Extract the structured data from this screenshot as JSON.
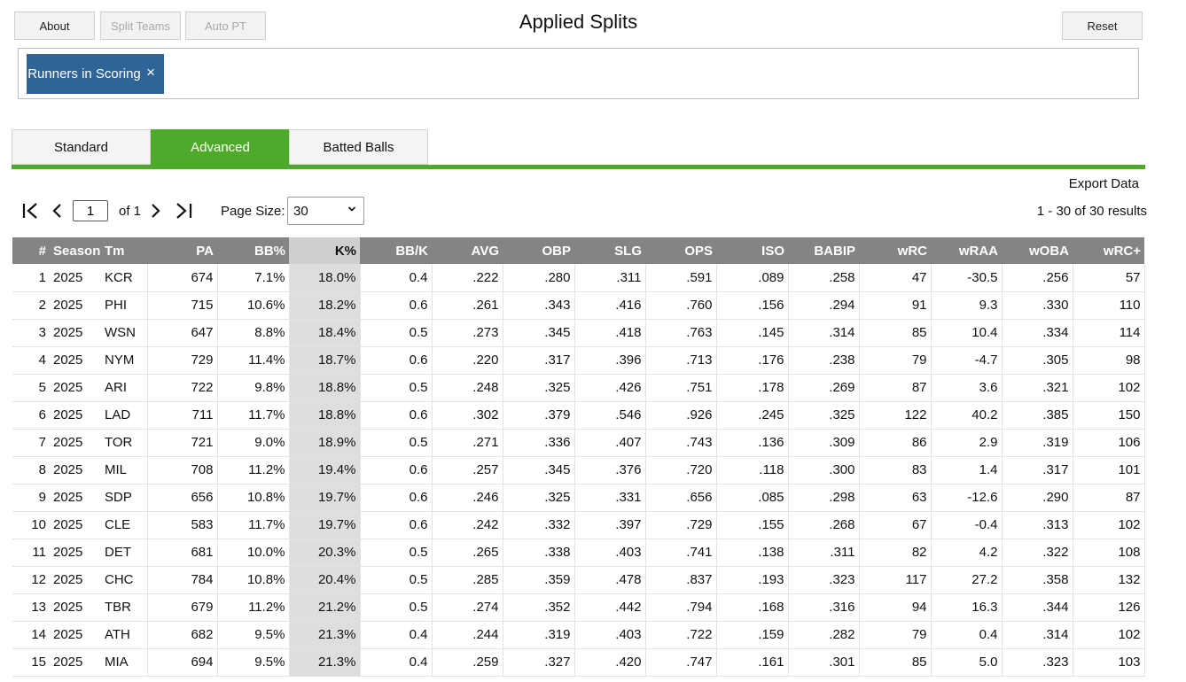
{
  "toolbar": {
    "about": "About",
    "split_teams": "Split Teams",
    "auto_pt": "Auto PT",
    "reset": "Reset"
  },
  "title": "Applied Splits",
  "filters": [
    {
      "label": "Runners in Scoring",
      "close": "×"
    }
  ],
  "tabs": [
    {
      "label": "Standard"
    },
    {
      "label": "Advanced",
      "active": true
    },
    {
      "label": "Batted Balls"
    }
  ],
  "export_label": "Export Data",
  "pager": {
    "page": "1",
    "of_label": "of 1",
    "page_size_label": "Page Size:",
    "page_size": "30",
    "results": "1 - 30 of 30 results"
  },
  "columns": [
    "#",
    "Season",
    "Tm",
    "PA",
    "BB%",
    "K%",
    "BB/K",
    "AVG",
    "OBP",
    "SLG",
    "OPS",
    "ISO",
    "BABIP",
    "wRC",
    "wRAA",
    "wOBA",
    "wRC+"
  ],
  "sorted_column": "K%",
  "rows": [
    [
      "1",
      "2025",
      "KCR",
      "674",
      "7.1%",
      "18.0%",
      "0.4",
      ".222",
      ".280",
      ".311",
      ".591",
      ".089",
      ".258",
      "47",
      "-30.5",
      ".256",
      "57"
    ],
    [
      "2",
      "2025",
      "PHI",
      "715",
      "10.6%",
      "18.2%",
      "0.6",
      ".261",
      ".343",
      ".416",
      ".760",
      ".156",
      ".294",
      "91",
      "9.3",
      ".330",
      "110"
    ],
    [
      "3",
      "2025",
      "WSN",
      "647",
      "8.8%",
      "18.4%",
      "0.5",
      ".273",
      ".345",
      ".418",
      ".763",
      ".145",
      ".314",
      "85",
      "10.4",
      ".334",
      "114"
    ],
    [
      "4",
      "2025",
      "NYM",
      "729",
      "11.4%",
      "18.7%",
      "0.6",
      ".220",
      ".317",
      ".396",
      ".713",
      ".176",
      ".238",
      "79",
      "-4.7",
      ".305",
      "98"
    ],
    [
      "5",
      "2025",
      "ARI",
      "722",
      "9.8%",
      "18.8%",
      "0.5",
      ".248",
      ".325",
      ".426",
      ".751",
      ".178",
      ".269",
      "87",
      "3.6",
      ".321",
      "102"
    ],
    [
      "6",
      "2025",
      "LAD",
      "711",
      "11.7%",
      "18.8%",
      "0.6",
      ".302",
      ".379",
      ".546",
      ".926",
      ".245",
      ".325",
      "122",
      "40.2",
      ".385",
      "150"
    ],
    [
      "7",
      "2025",
      "TOR",
      "721",
      "9.0%",
      "18.9%",
      "0.5",
      ".271",
      ".336",
      ".407",
      ".743",
      ".136",
      ".309",
      "86",
      "2.9",
      ".319",
      "106"
    ],
    [
      "8",
      "2025",
      "MIL",
      "708",
      "11.2%",
      "19.4%",
      "0.6",
      ".257",
      ".345",
      ".376",
      ".720",
      ".118",
      ".300",
      "83",
      "1.4",
      ".317",
      "101"
    ],
    [
      "9",
      "2025",
      "SDP",
      "656",
      "10.8%",
      "19.7%",
      "0.6",
      ".246",
      ".325",
      ".331",
      ".656",
      ".085",
      ".298",
      "63",
      "-12.6",
      ".290",
      "87"
    ],
    [
      "10",
      "2025",
      "CLE",
      "583",
      "11.7%",
      "19.7%",
      "0.6",
      ".242",
      ".332",
      ".397",
      ".729",
      ".155",
      ".268",
      "67",
      "-0.4",
      ".313",
      "102"
    ],
    [
      "11",
      "2025",
      "DET",
      "681",
      "10.0%",
      "20.3%",
      "0.5",
      ".265",
      ".338",
      ".403",
      ".741",
      ".138",
      ".311",
      "82",
      "4.2",
      ".322",
      "108"
    ],
    [
      "12",
      "2025",
      "CHC",
      "784",
      "10.8%",
      "20.4%",
      "0.5",
      ".285",
      ".359",
      ".478",
      ".837",
      ".193",
      ".323",
      "117",
      "27.2",
      ".358",
      "132"
    ],
    [
      "13",
      "2025",
      "TBR",
      "679",
      "11.2%",
      "21.2%",
      "0.5",
      ".274",
      ".352",
      ".442",
      ".794",
      ".168",
      ".316",
      "94",
      "16.3",
      ".344",
      "126"
    ],
    [
      "14",
      "2025",
      "ATH",
      "682",
      "9.5%",
      "21.3%",
      "0.4",
      ".244",
      ".319",
      ".403",
      ".722",
      ".159",
      ".282",
      "79",
      "0.4",
      ".314",
      "102"
    ],
    [
      "15",
      "2025",
      "MIA",
      "694",
      "9.5%",
      "21.3%",
      "0.4",
      ".259",
      ".327",
      ".420",
      ".747",
      ".161",
      ".301",
      "85",
      "5.0",
      ".323",
      "103"
    ]
  ]
}
